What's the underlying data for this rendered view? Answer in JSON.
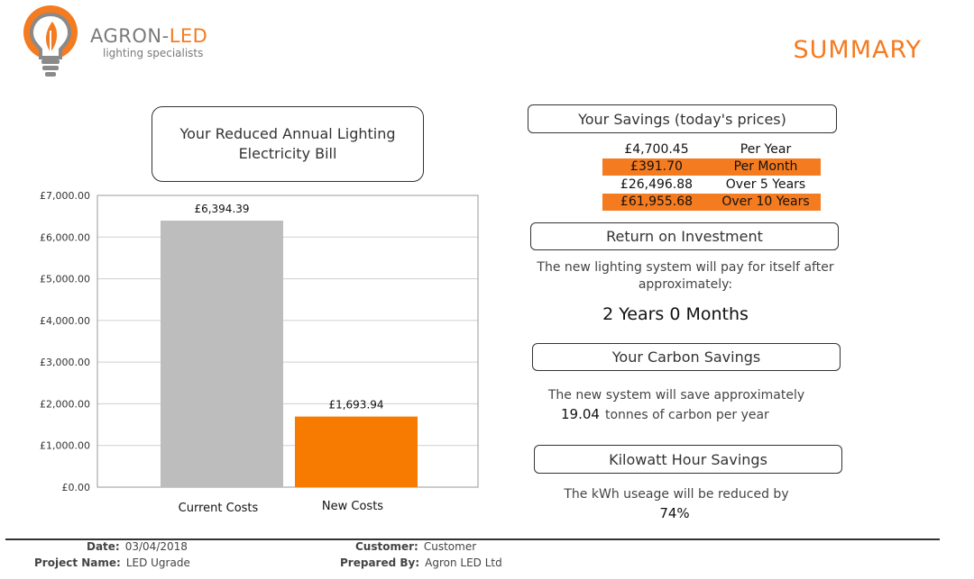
{
  "brand": {
    "name_main": "AGRON-",
    "name_accent": "LED",
    "tagline": "lighting specialists",
    "accent_color": "#f47b20",
    "grey_color": "#7a7a7a"
  },
  "page_title": "SUMMARY",
  "chart_title": "Your Reduced Annual Lighting Electricity Bill",
  "chart_data": {
    "type": "bar",
    "categories": [
      "Current Costs",
      "New Costs"
    ],
    "values": [
      6394.39,
      1693.94
    ],
    "value_labels": [
      "£6,394.39",
      "£1,693.94"
    ],
    "colors": [
      "#bdbdbd",
      "#f77b00"
    ],
    "ylim": [
      0,
      7000
    ],
    "y_ticks": [
      0,
      1000,
      2000,
      3000,
      4000,
      5000,
      6000,
      7000
    ],
    "y_tick_labels": [
      "£0.00",
      "£1,000.00",
      "£2,000.00",
      "£3,000.00",
      "£4,000.00",
      "£5,000.00",
      "£6,000.00",
      "£7,000.00"
    ],
    "grid": true,
    "legend": "none"
  },
  "savings": {
    "title": "Your Savings (today's prices)",
    "rows": [
      {
        "amount": "£4,700.45",
        "period": "Per Year",
        "highlight": false
      },
      {
        "amount": "£391.70",
        "period": "Per Month",
        "highlight": true
      },
      {
        "amount": "£26,496.88",
        "period": "Over 5 Years",
        "highlight": false
      },
      {
        "amount": "£61,955.68",
        "period": "Over 10 Years",
        "highlight": true
      }
    ]
  },
  "roi": {
    "title": "Return on Investment",
    "text": "The new lighting system will pay for itself after approximately:",
    "value": "2 Years 0 Months"
  },
  "carbon": {
    "title": "Your Carbon Savings",
    "text": "The new system will save approximately",
    "value": "19.04",
    "unit_text": "tonnes of carbon per year"
  },
  "kwh": {
    "title": "Kilowatt Hour Savings",
    "text": "The kWh useage will be reduced by",
    "value": "74%"
  },
  "footer": {
    "date_label": "Date:",
    "date_value": "03/04/2018",
    "project_label": "Project Name:",
    "project_value": "LED Ugrade",
    "customer_label": "Customer:",
    "customer_value": "Customer",
    "prepared_label": "Prepared By:",
    "prepared_value": "Agron LED Ltd"
  }
}
